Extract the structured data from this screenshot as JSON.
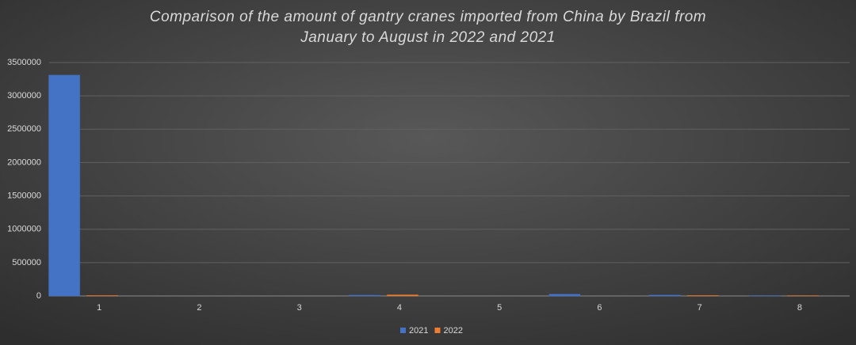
{
  "chart_data": {
    "type": "bar",
    "title": "Comparison of the amount of gantry cranes imported from China by Brazil from January to August in 2022 and 2021",
    "categories": [
      "1",
      "2",
      "3",
      "4",
      "5",
      "6",
      "7",
      "8"
    ],
    "series": [
      {
        "name": "2021",
        "color": "#4472c4",
        "values": [
          3310000,
          0,
          0,
          10000,
          0,
          25000,
          12000,
          3000
        ]
      },
      {
        "name": "2022",
        "color": "#ed7d31",
        "values": [
          5000,
          0,
          0,
          15000,
          0,
          0,
          5000,
          3000
        ]
      }
    ],
    "ylim": [
      0,
      3500000
    ],
    "yticks": [
      0,
      500000,
      1000000,
      1500000,
      2000000,
      2500000,
      3000000,
      3500000
    ],
    "grid": true
  }
}
